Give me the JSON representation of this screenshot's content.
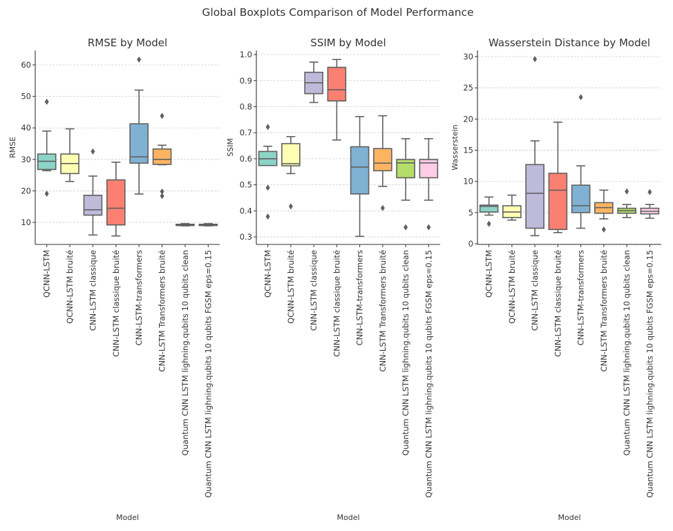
{
  "suptitle": "Global Boxplots Comparison of Model Performance",
  "palette": [
    "#8dd3c7",
    "#ffffb3",
    "#bebada",
    "#fb8072",
    "#80b1d3",
    "#fdb462",
    "#b3de69",
    "#fccde5"
  ],
  "chart_data": [
    {
      "type": "box",
      "title": "RMSE by Model",
      "xlabel": "Model",
      "ylabel": "RMSE",
      "ylim": [
        3,
        64.6
      ],
      "yticks": [
        10,
        20,
        30,
        40,
        50,
        60
      ],
      "ytick_labels": [
        "10",
        "20",
        "30",
        "40",
        "50",
        "60"
      ],
      "grid": "y-dashed",
      "categories": [
        "QCNN-LSTM",
        "QCNN-LSTM bruité",
        "CNN-LSTM classique",
        "CNN-LSTM classique bruité",
        "CNN-LSTM-transformers",
        "CNN-LSTM Transformers bruité",
        "Quantum CNN LSTM lighning.qubits 10 qubits clean",
        "Quantum CNN LSTM lighning.qubits 10 qubits FGSM eps=0.15"
      ],
      "boxes": [
        {
          "whislo": 26.4,
          "q1": 26.8,
          "med": 29.4,
          "q3": 31.7,
          "whishi": 39.0,
          "fliers": [
            48.3,
            19.1
          ]
        },
        {
          "whislo": 23.0,
          "q1": 25.5,
          "med": 28.7,
          "q3": 31.7,
          "whishi": 39.7,
          "fliers": []
        },
        {
          "whislo": 6.0,
          "q1": 12.3,
          "med": 14.0,
          "q3": 18.6,
          "whishi": 24.7,
          "fliers": [
            32.5
          ]
        },
        {
          "whislo": 5.7,
          "q1": 9.2,
          "med": 14.5,
          "q3": 23.5,
          "whishi": 29.1,
          "fliers": []
        },
        {
          "whislo": 19.0,
          "q1": 28.8,
          "med": 30.8,
          "q3": 41.3,
          "whishi": 52.0,
          "fliers": [
            61.7
          ]
        },
        {
          "whislo": 28.3,
          "q1": 28.4,
          "med": 30.0,
          "q3": 33.3,
          "whishi": 34.5,
          "fliers": [
            43.8,
            19.8,
            18.4
          ]
        },
        {
          "whislo": 8.9,
          "q1": 9.0,
          "med": 9.2,
          "q3": 9.4,
          "whishi": 9.6,
          "fliers": []
        },
        {
          "whislo": 8.9,
          "q1": 9.0,
          "med": 9.2,
          "q3": 9.4,
          "whishi": 9.6,
          "fliers": []
        }
      ]
    },
    {
      "type": "box",
      "title": "SSIM by Model",
      "xlabel": "Model",
      "ylabel": "SSIM",
      "ylim": [
        0.271,
        1.016
      ],
      "yticks": [
        0.3,
        0.4,
        0.5,
        0.6,
        0.7,
        0.8,
        0.9,
        1.0
      ],
      "ytick_labels": [
        "0.3",
        "0.4",
        "0.5",
        "0.6",
        "0.7",
        "0.8",
        "0.9",
        "1.0"
      ],
      "grid": "y-dashed",
      "categories": [
        "QCNN-LSTM",
        "QCNN-LSTM bruité",
        "CNN-LSTM classique",
        "CNN-LSTM classique bruité",
        "CNN-LSTM-transformers",
        "CNN-LSTM Transformers bruité",
        "Quantum CNN LSTM lighning.qubits 10 qubits clean",
        "Quantum CNN LSTM lighning.qubits 10 qubits FGSM eps=0.15"
      ],
      "boxes": [
        {
          "whislo": 0.574,
          "q1": 0.574,
          "med": 0.6,
          "q3": 0.628,
          "whishi": 0.648,
          "fliers": [
            0.722,
            0.489,
            0.378
          ]
        },
        {
          "whislo": 0.543,
          "q1": 0.573,
          "med": 0.581,
          "q3": 0.658,
          "whishi": 0.685,
          "fliers": [
            0.417
          ]
        },
        {
          "whislo": 0.816,
          "q1": 0.85,
          "med": 0.892,
          "q3": 0.932,
          "whishi": 0.971,
          "fliers": []
        },
        {
          "whislo": 0.672,
          "q1": 0.822,
          "med": 0.865,
          "q3": 0.951,
          "whishi": 0.981,
          "fliers": []
        },
        {
          "whislo": 0.302,
          "q1": 0.465,
          "med": 0.568,
          "q3": 0.646,
          "whishi": 0.762,
          "fliers": []
        },
        {
          "whislo": 0.494,
          "q1": 0.554,
          "med": 0.583,
          "q3": 0.639,
          "whishi": 0.765,
          "fliers": [
            0.411
          ]
        },
        {
          "whislo": 0.441,
          "q1": 0.527,
          "med": 0.584,
          "q3": 0.597,
          "whishi": 0.677,
          "fliers": [
            0.337
          ]
        },
        {
          "whislo": 0.441,
          "q1": 0.527,
          "med": 0.584,
          "q3": 0.597,
          "whishi": 0.677,
          "fliers": [
            0.337
          ]
        }
      ]
    },
    {
      "type": "box",
      "title": "Wasserstein Distance by Model",
      "xlabel": "Model",
      "ylabel": "Wasserstein",
      "ylim": [
        -0.1,
        31
      ],
      "yticks": [
        0,
        5,
        10,
        15,
        20,
        25,
        30
      ],
      "ytick_labels": [
        "0",
        "5",
        "10",
        "15",
        "20",
        "25",
        "30"
      ],
      "grid": "y-dashed",
      "categories": [
        "QCNN-LSTM",
        "QCNN-LSTM bruité",
        "CNN-LSTM classique",
        "CNN-LSTM classique bruité",
        "CNN-LSTM-transformers",
        "CNN-LSTM Transformers bruité",
        "Quantum CNN LSTM lighning.qubits 10 qubits clean",
        "Quantum CNN LSTM lighning.qubits 10 qubits FGSM eps=0.15"
      ],
      "boxes": [
        {
          "whislo": 4.6,
          "q1": 5.1,
          "med": 6.0,
          "q3": 6.2,
          "whishi": 7.5,
          "fliers": [
            3.2
          ]
        },
        {
          "whislo": 3.8,
          "q1": 4.2,
          "med": 5.1,
          "q3": 6.1,
          "whishi": 7.8,
          "fliers": []
        },
        {
          "whislo": 1.3,
          "q1": 2.5,
          "med": 8.1,
          "q3": 12.7,
          "whishi": 16.5,
          "fliers": [
            29.6
          ]
        },
        {
          "whislo": 1.8,
          "q1": 2.3,
          "med": 8.6,
          "q3": 11.3,
          "whishi": 19.5,
          "fliers": []
        },
        {
          "whislo": 2.5,
          "q1": 5.0,
          "med": 6.1,
          "q3": 9.4,
          "whishi": 12.5,
          "fliers": [
            23.5
          ]
        },
        {
          "whislo": 4.0,
          "q1": 4.9,
          "med": 5.8,
          "q3": 6.6,
          "whishi": 8.6,
          "fliers": [
            2.3
          ]
        },
        {
          "whislo": 4.2,
          "q1": 4.9,
          "med": 5.3,
          "q3": 5.7,
          "whishi": 6.3,
          "fliers": [
            8.4
          ]
        },
        {
          "whislo": 4.1,
          "q1": 4.8,
          "med": 5.2,
          "q3": 5.7,
          "whishi": 6.3,
          "fliers": [
            8.3
          ]
        }
      ]
    }
  ]
}
